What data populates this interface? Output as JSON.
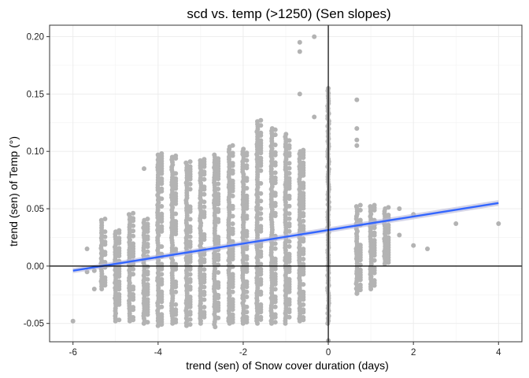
{
  "chart_data": {
    "type": "scatter",
    "title": "scd vs. temp (>1250) (Sen slopes)",
    "xlabel": "trend (sen) of Snow cover duration (days)",
    "ylabel": "trend (sen) of Temp (°)",
    "xlim": [
      -6.55,
      4.55
    ],
    "ylim": [
      -0.066,
      0.21
    ],
    "x_ticks": [
      -6,
      -4,
      -2,
      0,
      2,
      4
    ],
    "x_tick_labels": [
      "-6",
      "-4",
      "-2",
      "0",
      "2",
      "4"
    ],
    "y_ticks": [
      -0.05,
      0.0,
      0.05,
      0.1,
      0.15,
      0.2
    ],
    "y_tick_labels": [
      "-0.05",
      "0.00",
      "0.05",
      "0.10",
      "0.15",
      "0.20"
    ],
    "grid": true,
    "reference_lines": {
      "x": 0,
      "y": 0
    },
    "point_color": "#b3b3b3",
    "fit_color": "#3366ff",
    "band_color": "#b8b8d8",
    "fit_line": {
      "method": "lm",
      "x": [
        -6,
        4
      ],
      "y": [
        -0.004,
        0.055
      ]
    },
    "columns": [
      {
        "x": -5.33,
        "y_min": -0.02,
        "y_max": 0.04
      },
      {
        "x": -5.0,
        "y_min": -0.048,
        "y_max": 0.03
      },
      {
        "x": -4.67,
        "y_min": -0.048,
        "y_max": 0.045
      },
      {
        "x": -4.33,
        "y_min": -0.05,
        "y_max": 0.04
      },
      {
        "x": -4.0,
        "y_min": -0.052,
        "y_max": 0.097
      },
      {
        "x": -3.67,
        "y_min": -0.05,
        "y_max": 0.095
      },
      {
        "x": -3.33,
        "y_min": -0.052,
        "y_max": 0.09
      },
      {
        "x": -3.0,
        "y_min": -0.05,
        "y_max": 0.092
      },
      {
        "x": -2.67,
        "y_min": -0.053,
        "y_max": 0.097
      },
      {
        "x": -2.33,
        "y_min": -0.05,
        "y_max": 0.104
      },
      {
        "x": -2.0,
        "y_min": -0.05,
        "y_max": 0.102
      },
      {
        "x": -1.67,
        "y_min": -0.05,
        "y_max": 0.126
      },
      {
        "x": -1.33,
        "y_min": -0.05,
        "y_max": 0.12
      },
      {
        "x": -1.0,
        "y_min": -0.05,
        "y_max": 0.115
      },
      {
        "x": -0.67,
        "y_min": -0.048,
        "y_max": 0.1
      },
      {
        "x": 0.0,
        "y_min": -0.05,
        "y_max": 0.155
      },
      {
        "x": 0.67,
        "y_min": -0.024,
        "y_max": 0.052
      },
      {
        "x": 1.0,
        "y_min": -0.018,
        "y_max": 0.052
      },
      {
        "x": 1.33,
        "y_min": 0.002,
        "y_max": 0.05
      }
    ],
    "points": [
      {
        "x": -6.0,
        "y": -0.048
      },
      {
        "x": -5.67,
        "y": 0.015
      },
      {
        "x": -5.67,
        "y": -0.005
      },
      {
        "x": -5.5,
        "y": -0.02
      },
      {
        "x": -5.5,
        "y": -0.004
      },
      {
        "x": -4.33,
        "y": 0.085
      },
      {
        "x": -0.33,
        "y": 0.2
      },
      {
        "x": -0.67,
        "y": 0.195
      },
      {
        "x": -0.67,
        "y": 0.187
      },
      {
        "x": -0.67,
        "y": 0.15
      },
      {
        "x": -0.33,
        "y": 0.13
      },
      {
        "x": 0.67,
        "y": 0.145
      },
      {
        "x": 0.67,
        "y": 0.11
      },
      {
        "x": 0.67,
        "y": 0.105
      },
      {
        "x": 0.67,
        "y": 0.12
      },
      {
        "x": 1.67,
        "y": 0.05
      },
      {
        "x": 2.0,
        "y": 0.045
      },
      {
        "x": 2.0,
        "y": 0.018
      },
      {
        "x": 2.33,
        "y": 0.015
      },
      {
        "x": 3.0,
        "y": 0.037
      },
      {
        "x": 4.0,
        "y": 0.037
      },
      {
        "x": 1.67,
        "y": 0.027
      },
      {
        "x": 1.33,
        "y": 0.035
      },
      {
        "x": 0.67,
        "y": -0.024
      },
      {
        "x": 1.0,
        "y": -0.02
      },
      {
        "x": 0.75,
        "y": -0.012
      },
      {
        "x": 1.0,
        "y": -0.01
      },
      {
        "x": 0.0,
        "y": -0.065
      }
    ]
  }
}
